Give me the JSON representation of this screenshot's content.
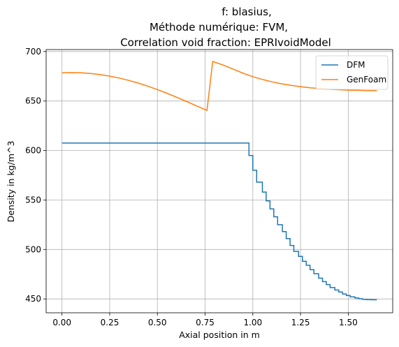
{
  "chart_data": {
    "type": "line",
    "title_lines": [
      "f: blasius,",
      "Méthode numérique: FVM,",
      "Correlation void fraction: EPRIvoidModel"
    ],
    "xlabel": "Axial position in m",
    "ylabel": "Density in kg/m^3",
    "xlim": [
      -0.083,
      1.733
    ],
    "ylim": [
      436,
      702
    ],
    "xticks": [
      0.0,
      0.25,
      0.5,
      0.75,
      1.0,
      1.25,
      1.5
    ],
    "xtick_labels": [
      "0.00",
      "0.25",
      "0.50",
      "0.75",
      "1.00",
      "1.25",
      "1.50"
    ],
    "yticks": [
      450,
      500,
      550,
      600,
      650,
      700
    ],
    "ytick_labels": [
      "450",
      "500",
      "550",
      "600",
      "650",
      "700"
    ],
    "grid": true,
    "legend_position": "top-right",
    "series": [
      {
        "name": "DFM",
        "color": "#1f77b4",
        "style": "step",
        "x": [
          0.0,
          0.98,
          0.98,
          1.0,
          1.0,
          1.02,
          1.02,
          1.05,
          1.05,
          1.07,
          1.07,
          1.09,
          1.09,
          1.11,
          1.11,
          1.13,
          1.13,
          1.155,
          1.155,
          1.175,
          1.175,
          1.195,
          1.195,
          1.215,
          1.215,
          1.24,
          1.24,
          1.26,
          1.26,
          1.28,
          1.28,
          1.3,
          1.3,
          1.32,
          1.32,
          1.345,
          1.345,
          1.365,
          1.365,
          1.385,
          1.385,
          1.405,
          1.405,
          1.43,
          1.43,
          1.45,
          1.45,
          1.47,
          1.47,
          1.49,
          1.49,
          1.51,
          1.51,
          1.535,
          1.535,
          1.555,
          1.555,
          1.575,
          1.575,
          1.595,
          1.595,
          1.62,
          1.62,
          1.65
        ],
        "y": [
          607.5,
          607.5,
          595,
          595,
          580,
          580,
          568,
          568,
          558,
          558,
          549,
          549,
          541,
          541,
          533,
          533,
          525,
          525,
          518,
          518,
          511,
          511,
          504,
          504,
          498,
          498,
          493,
          493,
          488,
          488,
          484,
          484,
          479.5,
          479.5,
          475.5,
          475.5,
          471,
          471,
          467.5,
          467.5,
          464.5,
          464.5,
          461.5,
          461.5,
          459,
          459,
          457,
          457,
          455,
          455,
          453.5,
          453.5,
          452,
          452,
          451,
          451,
          450.2,
          450.2,
          449.6,
          449.6,
          449.3,
          449.3,
          449.1,
          449.1
        ]
      },
      {
        "name": "GenFoam",
        "color": "#ff7f0e",
        "style": "line",
        "x": [
          0.0,
          0.05,
          0.1,
          0.15,
          0.2,
          0.25,
          0.3,
          0.35,
          0.4,
          0.45,
          0.5,
          0.55,
          0.6,
          0.65,
          0.7,
          0.76,
          0.79,
          0.85,
          0.9,
          0.95,
          1.0,
          1.05,
          1.1,
          1.15,
          1.2,
          1.25,
          1.3,
          1.35,
          1.4,
          1.45,
          1.5,
          1.55,
          1.6,
          1.65
        ],
        "y": [
          678.5,
          678.7,
          678.5,
          677.8,
          676.7,
          675.2,
          673.2,
          670.8,
          668.1,
          665.0,
          661.6,
          657.9,
          653.9,
          649.8,
          645.5,
          640.5,
          690.0,
          686.0,
          682.0,
          678.0,
          674.6,
          671.8,
          669.4,
          667.4,
          665.8,
          664.5,
          663.4,
          662.6,
          661.9,
          661.4,
          661.0,
          660.8,
          660.6,
          660.5
        ]
      }
    ]
  }
}
